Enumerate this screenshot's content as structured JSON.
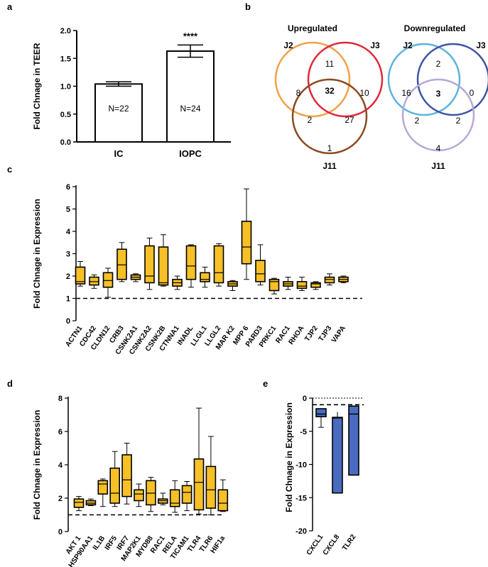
{
  "panel_labels": {
    "a": "a",
    "b": "b",
    "c": "c",
    "d": "d",
    "e": "e"
  },
  "colors": {
    "box_fill": "#f6c026",
    "bar_fill": "#4a6cc0",
    "venn_up_j2": "#f0a24a",
    "venn_up_j3": "#e02a3a",
    "venn_up_j11": "#8a4a22",
    "venn_down_j2": "#59b3de",
    "venn_down_j3": "#3f53a6",
    "venn_down_j11": "#b6a8d8"
  },
  "chart_data": [
    {
      "id": "a",
      "type": "bar",
      "ylabel": "Fold Chnage in TEER",
      "ylim": [
        0,
        2.0
      ],
      "yticks": [
        "0.0",
        "0.5",
        "1.0",
        "1.5",
        "2.0"
      ],
      "categories": [
        "IC",
        "IOPC"
      ],
      "values": [
        1.04,
        1.63
      ],
      "errors": [
        0.04,
        0.11
      ],
      "bar_labels": [
        "N=22",
        "N=24"
      ],
      "significance": [
        "",
        "****"
      ]
    },
    {
      "id": "b",
      "type": "venn",
      "diagrams": [
        {
          "title": "Upregulated",
          "sets": [
            "J2",
            "J3",
            "J11"
          ],
          "counts": {
            "j2_only": "8",
            "j3_only": "10",
            "j11_only": "1",
            "j2_j3": "11",
            "j2_j11": "2",
            "j3_j11": "27",
            "all": "32"
          }
        },
        {
          "title": "Downregulated",
          "sets": [
            "J2",
            "J3",
            "J11"
          ],
          "counts": {
            "j2_only": "16",
            "j3_only": "0",
            "j11_only": "4",
            "j2_j3": "2",
            "j2_j11": "2",
            "j3_j11": "2",
            "all": "3"
          }
        }
      ]
    },
    {
      "id": "c",
      "type": "box",
      "ylabel": "Fold Chnage in Expression",
      "ylim": [
        0,
        6
      ],
      "yticks": [
        "0",
        "1",
        "2",
        "3",
        "4",
        "5",
        "6"
      ],
      "reference_line": 1,
      "categories": [
        "ACTN1",
        "CDC42",
        "CLDN12",
        "CRB3",
        "CSNK2A1",
        "CSNK2A2",
        "CSNK2B",
        "CTNNA1",
        "INADL",
        "LLGL1",
        "LLGL2",
        "MAR K2",
        "MPP 6",
        "PARD3",
        "PRKC1",
        "RAC1",
        "RHOA",
        "TJP2",
        "TJP3",
        "VAPA"
      ],
      "boxes": [
        [
          1.55,
          1.65,
          1.75,
          2.4,
          2.65
        ],
        [
          1.45,
          1.6,
          1.75,
          1.95,
          2.05
        ],
        [
          1.05,
          1.5,
          1.8,
          2.15,
          2.35
        ],
        [
          1.75,
          1.85,
          2.5,
          3.2,
          3.5
        ],
        [
          1.75,
          1.85,
          1.95,
          2.05,
          2.1
        ],
        [
          1.4,
          1.7,
          2.0,
          3.35,
          3.7
        ],
        [
          1.55,
          1.6,
          1.7,
          3.3,
          3.85
        ],
        [
          1.4,
          1.55,
          1.7,
          1.85,
          2.0
        ],
        [
          1.5,
          1.85,
          2.45,
          3.35,
          3.4
        ],
        [
          1.5,
          1.75,
          1.85,
          2.15,
          2.4
        ],
        [
          1.55,
          1.7,
          2.15,
          3.35,
          3.45
        ],
        [
          1.35,
          1.55,
          1.65,
          1.75,
          1.8
        ],
        [
          1.85,
          2.55,
          3.3,
          4.45,
          5.9
        ],
        [
          1.6,
          1.75,
          2.1,
          2.7,
          3.4
        ],
        [
          1.2,
          1.35,
          1.75,
          1.85,
          1.9
        ],
        [
          1.4,
          1.55,
          1.65,
          1.75,
          1.95
        ],
        [
          1.35,
          1.45,
          1.55,
          1.75,
          1.95
        ],
        [
          1.4,
          1.5,
          1.65,
          1.7,
          1.75
        ],
        [
          1.6,
          1.7,
          1.85,
          1.95,
          2.1
        ],
        [
          1.7,
          1.75,
          1.85,
          1.95,
          2.0
        ]
      ]
    },
    {
      "id": "d",
      "type": "box",
      "ylabel": "Fold Chnage in Expression",
      "ylim": [
        0,
        8
      ],
      "yticks": [
        "0",
        "2",
        "4",
        "6",
        "8"
      ],
      "reference_line": 1,
      "categories": [
        "AKT 1",
        "HSP90AA1",
        "IL1B",
        "IRF5",
        "IRF7",
        "MAP2K1",
        "MYD88",
        "RAC1",
        "RELA",
        "TICAM1",
        "TLR4",
        "TLR6",
        "HIF1a"
      ],
      "boxes": [
        [
          1.25,
          1.45,
          1.75,
          1.95,
          2.1
        ],
        [
          1.55,
          1.6,
          1.7,
          1.85,
          1.95
        ],
        [
          1.5,
          2.25,
          2.85,
          3.05,
          3.15
        ],
        [
          1.5,
          1.7,
          2.3,
          3.8,
          4.8
        ],
        [
          1.65,
          2.1,
          3.1,
          4.6,
          5.3
        ],
        [
          1.5,
          1.85,
          2.25,
          2.5,
          2.85
        ],
        [
          1.2,
          1.6,
          2.3,
          3.05,
          3.25
        ],
        [
          1.6,
          1.7,
          1.85,
          1.95,
          2.3
        ],
        [
          1.15,
          1.5,
          1.7,
          2.5,
          3.05
        ],
        [
          1.25,
          1.7,
          2.35,
          2.75,
          3.0
        ],
        [
          1.05,
          1.3,
          2.95,
          4.35,
          7.4
        ],
        [
          1.0,
          1.4,
          2.5,
          3.9,
          5.7
        ],
        [
          1.2,
          1.25,
          1.7,
          2.5,
          3.1
        ]
      ]
    },
    {
      "id": "e",
      "type": "bar",
      "ylabel": "Fold Chnage in Expression",
      "ylim": [
        -20,
        0
      ],
      "yticks": [
        "0",
        "-5",
        "-10",
        "-15",
        "-20"
      ],
      "reference_line": -1,
      "categories": [
        "CXCL1",
        "CXCL8",
        "TLR2"
      ],
      "bar_low": [
        -2.8,
        -14.3,
        -11.6
      ],
      "bar_high": [
        -1.6,
        -2.9,
        -1.2
      ],
      "mid": [
        -2.4,
        -3.0,
        -2.4
      ],
      "whisker_low": [
        -4.4,
        -14.3,
        -11.6
      ],
      "whisker_high": [
        -1.6,
        -2.1,
        -1.2
      ]
    }
  ]
}
